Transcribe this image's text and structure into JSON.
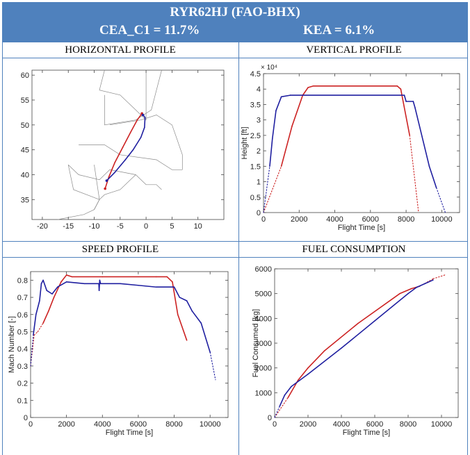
{
  "header": {
    "title": "RYR62HJ (FAO-BHX)",
    "cea_label": "CEA_C1 = 11.7%",
    "kea_label": "KEA = 6.1%"
  },
  "sections": {
    "horizontal": "HORIZONTAL PROFILE",
    "vertical": "VERTICAL PROFILE",
    "speed": "SPEED PROFILE",
    "fuel": "FUEL CONSUMPTION"
  },
  "colors": {
    "header_bg": "#4f81bd",
    "red_series": "#cc2222",
    "blue_series": "#1f1fa0",
    "border": "#4f81bd"
  },
  "chart_data": [
    {
      "id": "horizontal",
      "type": "line",
      "xlim": [
        -22,
        15
      ],
      "ylim": [
        31,
        61
      ],
      "xticks": [
        -20,
        -15,
        -10,
        -5,
        0,
        5,
        10
      ],
      "yticks": [
        35,
        40,
        45,
        50,
        55,
        60
      ],
      "xlabel": "",
      "ylabel": "",
      "series": [
        {
          "color": "red",
          "x": [
            -7.9,
            -7.2,
            -6.0,
            -4.5,
            -3.0,
            -1.7,
            -0.8
          ],
          "y": [
            37.2,
            39.5,
            42.5,
            45.5,
            48.5,
            51.0,
            52.3
          ]
        },
        {
          "color": "blue",
          "x": [
            -7.6,
            -6.0,
            -4.0,
            -2.5,
            -1.0,
            -0.3,
            -0.2,
            -0.6
          ],
          "y": [
            38.8,
            40.5,
            43.0,
            45.0,
            47.5,
            49.5,
            51.5,
            52.0
          ]
        }
      ],
      "boundaries": [
        [
          [
            -8,
            61
          ],
          [
            -9,
            57
          ],
          [
            -5,
            56
          ],
          [
            -2,
            53
          ],
          [
            0,
            51
          ],
          [
            0,
            61
          ]
        ],
        [
          [
            -8,
            56
          ],
          [
            -8,
            50
          ],
          [
            -2,
            51
          ],
          [
            1,
            53
          ],
          [
            3,
            61
          ]
        ],
        [
          [
            -7,
            50
          ],
          [
            -1,
            51
          ],
          [
            2,
            52
          ],
          [
            5,
            50
          ],
          [
            6,
            47
          ],
          [
            7,
            44
          ],
          [
            7,
            41
          ]
        ],
        [
          [
            -13,
            46
          ],
          [
            -8,
            46
          ],
          [
            -5,
            44
          ],
          [
            2,
            43
          ],
          [
            5,
            41
          ],
          [
            7,
            41
          ]
        ],
        [
          [
            -15,
            42
          ],
          [
            -13,
            40
          ],
          [
            -9,
            39
          ],
          [
            -7,
            41
          ],
          [
            -2,
            40
          ],
          [
            0,
            38
          ],
          [
            2,
            38
          ],
          [
            3,
            37
          ]
        ],
        [
          [
            -15,
            42
          ],
          [
            -14,
            37
          ],
          [
            -9,
            35
          ],
          [
            -10,
            33
          ],
          [
            -12,
            32
          ],
          [
            -17,
            31
          ]
        ],
        [
          [
            -10,
            42
          ],
          [
            -9,
            35
          ],
          [
            -10,
            33
          ]
        ],
        [
          [
            -2,
            40
          ],
          [
            -5,
            37
          ],
          [
            -8,
            36
          ],
          [
            -9,
            35
          ]
        ]
      ]
    },
    {
      "id": "vertical",
      "type": "line",
      "xlim": [
        0,
        11000
      ],
      "ylim": [
        0,
        45000
      ],
      "xticks": [
        0,
        2000,
        4000,
        6000,
        8000,
        10000
      ],
      "yticks": [
        0,
        5000,
        10000,
        15000,
        20000,
        25000,
        30000,
        35000,
        40000,
        45000
      ],
      "ytick_labels": [
        "0",
        "0.5",
        "1",
        "1.5",
        "2",
        "2.5",
        "3",
        "3.5",
        "4",
        "4.5"
      ],
      "y_exponent": "× 10⁴",
      "xlabel": "Flight Time [s]",
      "ylabel": "Height [ft]",
      "series": [
        {
          "color": "red",
          "x": [
            0,
            1000,
            1600,
            2200,
            2500,
            2800,
            4000,
            7500,
            7700,
            8200,
            8700
          ],
          "y": [
            0,
            15000,
            28000,
            38000,
            40500,
            41000,
            41000,
            41000,
            40000,
            25000,
            0
          ],
          "dashed_ranges": [
            [
              0,
              1000
            ],
            [
              8200,
              8700
            ]
          ]
        },
        {
          "color": "blue",
          "x": [
            0,
            350,
            500,
            700,
            1000,
            1500,
            7900,
            8000,
            8400,
            8500,
            9300,
            9700,
            10200
          ],
          "y": [
            0,
            15000,
            24000,
            33000,
            37500,
            38000,
            38000,
            36000,
            36000,
            34000,
            15000,
            8000,
            0
          ],
          "dashed_ranges": [
            [
              0,
              350
            ],
            [
              9700,
              10200
            ]
          ]
        }
      ]
    },
    {
      "id": "speed",
      "type": "line",
      "xlim": [
        0,
        11000
      ],
      "ylim": [
        0,
        0.85
      ],
      "xticks": [
        0,
        2000,
        4000,
        6000,
        8000,
        10000
      ],
      "yticks": [
        0,
        0.1,
        0.2,
        0.3,
        0.4,
        0.5,
        0.6,
        0.7,
        0.8
      ],
      "xlabel": "Flight Time [s]",
      "ylabel": "Mach Number [-]",
      "series": [
        {
          "color": "red",
          "x": [
            0,
            200,
            400,
            700,
            1000,
            1300,
            1700,
            2000,
            2300,
            4000,
            7000,
            7600,
            7900,
            8200,
            8700
          ],
          "y": [
            0.3,
            0.48,
            0.5,
            0.55,
            0.62,
            0.7,
            0.79,
            0.83,
            0.82,
            0.82,
            0.82,
            0.82,
            0.79,
            0.6,
            0.45
          ],
          "dashed_ranges": [
            [
              0,
              700
            ],
            [
              8300,
              8700
            ]
          ]
        },
        {
          "color": "blue",
          "x": [
            0,
            150,
            300,
            500,
            600,
            700,
            900,
            1200,
            1500,
            2000,
            3000,
            3800,
            3820,
            3850,
            3900,
            5000,
            6000,
            7000,
            8000,
            8300,
            8700,
            9000,
            9500,
            10000,
            10300
          ],
          "y": [
            0.3,
            0.48,
            0.6,
            0.68,
            0.78,
            0.8,
            0.74,
            0.72,
            0.76,
            0.79,
            0.78,
            0.78,
            0.74,
            0.8,
            0.78,
            0.78,
            0.77,
            0.76,
            0.76,
            0.7,
            0.68,
            0.62,
            0.55,
            0.38,
            0.22
          ],
          "dashed_ranges": [
            [
              0,
              150
            ],
            [
              9900,
              10300
            ]
          ]
        }
      ]
    },
    {
      "id": "fuel",
      "type": "line",
      "xlim": [
        0,
        11000
      ],
      "ylim": [
        0,
        6000
      ],
      "xticks": [
        0,
        2000,
        4000,
        6000,
        8000,
        10000
      ],
      "yticks": [
        0,
        1000,
        2000,
        3000,
        4000,
        5000,
        6000
      ],
      "xlabel": "Flight Time [s]",
      "ylabel": "Fuel Consumed [kg]",
      "series": [
        {
          "color": "red",
          "x": [
            0,
            800,
            1400,
            2000,
            3000,
            5000,
            7500,
            8200,
            8700,
            9500,
            10200
          ],
          "y": [
            0,
            800,
            1500,
            2000,
            2700,
            3800,
            5000,
            5200,
            5300,
            5600,
            5750
          ],
          "dashed_ranges": [
            [
              0,
              800
            ],
            [
              8700,
              10200
            ]
          ]
        },
        {
          "color": "blue",
          "x": [
            0,
            300,
            600,
            1000,
            1500,
            2000,
            4000,
            6000,
            8000,
            8500,
            9000,
            9500
          ],
          "y": [
            0,
            450,
            900,
            1250,
            1500,
            1750,
            2800,
            3900,
            5000,
            5250,
            5400,
            5550
          ],
          "dashed_ranges": [
            [
              0,
              300
            ]
          ]
        }
      ]
    }
  ]
}
